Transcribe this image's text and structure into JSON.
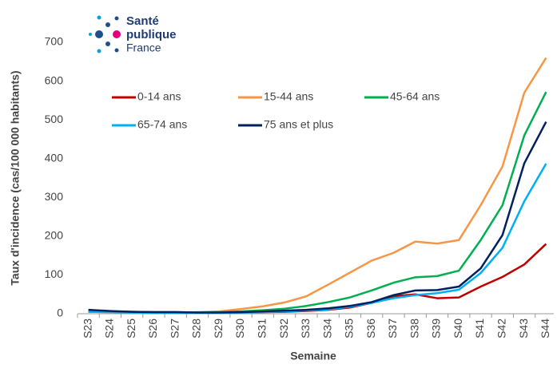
{
  "logo": {
    "line1": "Santé",
    "line2": "publique",
    "line3": "France"
  },
  "chart_data": {
    "type": "line",
    "y_label": "Taux d'incidence (cas/100 000 habitants)",
    "x_label": "Semaine",
    "categories": [
      "S23",
      "S24",
      "S25",
      "S26",
      "S27",
      "S28",
      "S29",
      "S30",
      "S31",
      "S32",
      "S33",
      "S34",
      "S35",
      "S36",
      "S37",
      "S38",
      "S39",
      "S40",
      "S41",
      "S42",
      "S43",
      "S44"
    ],
    "series": [
      {
        "name": "0-14 ans",
        "color": "#c00000",
        "values": [
          8,
          6,
          5,
          4,
          4,
          3,
          3,
          3,
          4,
          5,
          7,
          10,
          16,
          28,
          45,
          50,
          40,
          42,
          70,
          95,
          127,
          180
        ]
      },
      {
        "name": "15-44 ans",
        "color": "#f79646",
        "values": [
          5,
          4,
          3,
          3,
          3,
          4,
          6,
          12,
          19,
          29,
          45,
          75,
          106,
          137,
          157,
          186,
          181,
          190,
          280,
          380,
          570,
          660
        ]
      },
      {
        "name": "45-64 ans",
        "color": "#00b050",
        "values": [
          6,
          5,
          4,
          3,
          3,
          3,
          4,
          6,
          9,
          13,
          20,
          30,
          42,
          60,
          80,
          94,
          97,
          111,
          190,
          280,
          460,
          572
        ]
      },
      {
        "name": "65-74 ans",
        "color": "#00b0f0",
        "values": [
          5,
          4,
          3,
          2,
          2,
          2,
          2,
          3,
          4,
          6,
          8,
          11,
          18,
          28,
          40,
          48,
          53,
          62,
          105,
          170,
          290,
          387
        ]
      },
      {
        "name": "75 ans et plus",
        "color": "#002060",
        "values": [
          10,
          7,
          5,
          4,
          4,
          3,
          3,
          4,
          6,
          8,
          10,
          14,
          20,
          30,
          48,
          60,
          61,
          70,
          117,
          203,
          388,
          495
        ]
      }
    ],
    "ylim": [
      0,
      700
    ],
    "yticks": [
      0,
      100,
      200,
      300,
      400,
      500,
      600,
      700
    ],
    "grid": false
  }
}
